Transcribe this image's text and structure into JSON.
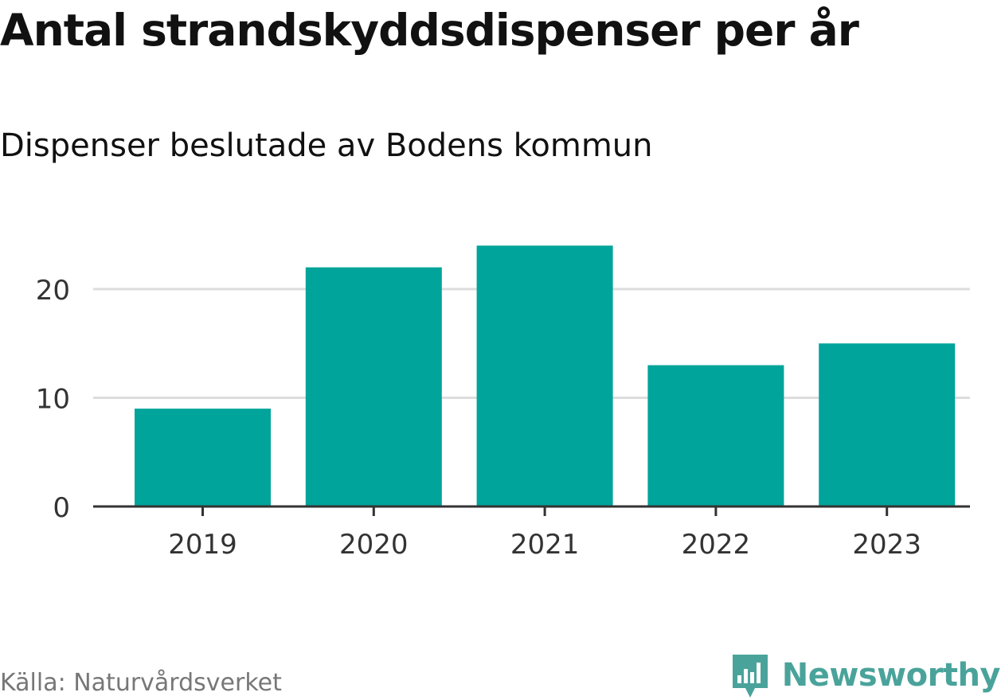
{
  "chart_data": {
    "type": "bar",
    "title": "Antal strandskyddsdispenser per år",
    "subtitle": "Dispenser beslutade av Bodens kommun",
    "categories": [
      "2019",
      "2020",
      "2021",
      "2022",
      "2023"
    ],
    "values": [
      9,
      22,
      24,
      13,
      15
    ],
    "ylim": [
      0,
      25
    ],
    "yticks": [
      0,
      10,
      20
    ],
    "xlabel": "",
    "ylabel": "",
    "grid": true,
    "bar_color": "#00a49a"
  },
  "footer": {
    "source": "Källa: Naturvårdsverket",
    "brand": "Newsworthy",
    "brand_icon": "newsworthy-logo-icon",
    "brand_color": "#4aa39b"
  }
}
